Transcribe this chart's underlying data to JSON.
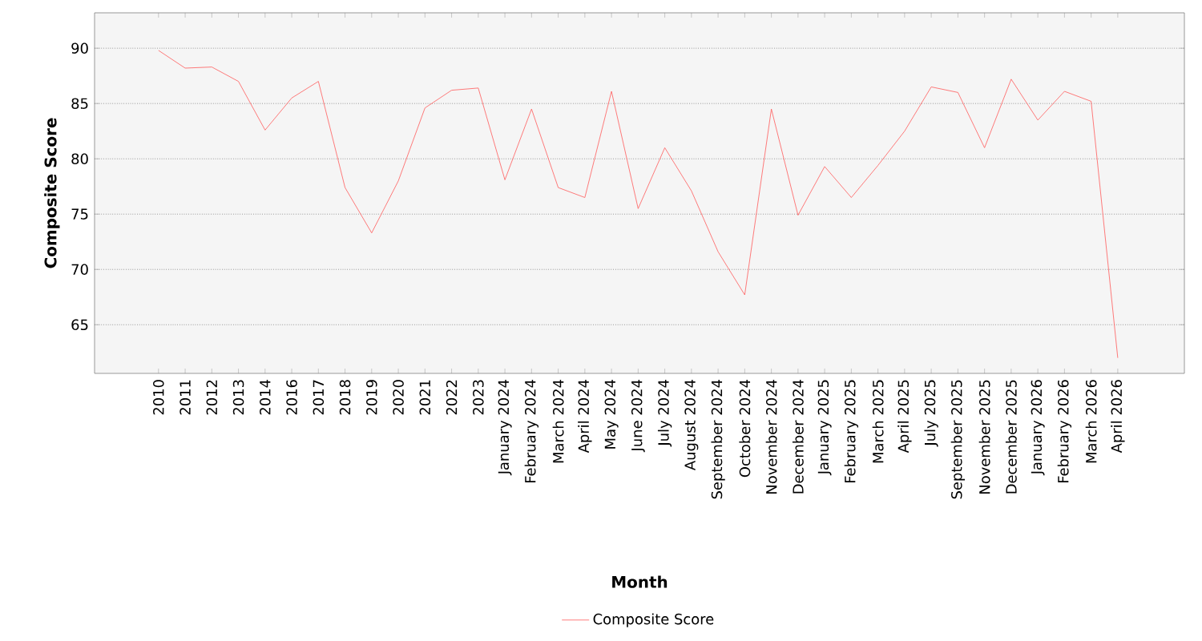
{
  "chart_data": {
    "type": "line",
    "xlabel": "Month",
    "ylabel": "Composite Score",
    "categories": [
      "2010",
      "2011",
      "2012",
      "2013",
      "2014",
      "2016",
      "2017",
      "2018",
      "2019",
      "2020",
      "2021",
      "2022",
      "2023",
      "January 2024",
      "February 2024",
      "March 2024",
      "April 2024",
      "May 2024",
      "June 2024",
      "July 2024",
      "August 2024",
      "September 2024",
      "October 2024",
      "November 2024",
      "December 2024",
      "January 2025",
      "February 2025",
      "March 2025",
      "April 2025",
      "July 2025",
      "September 2025",
      "November 2025",
      "December 2025",
      "January 2026",
      "February 2026",
      "March 2026",
      "April 2026"
    ],
    "series": [
      {
        "name": "Composite Score",
        "color": "#ff5a5a",
        "values": [
          89.8,
          88.2,
          88.3,
          87.0,
          82.6,
          85.5,
          87.0,
          77.4,
          73.3,
          78.0,
          84.6,
          86.2,
          86.4,
          78.1,
          84.5,
          77.4,
          76.5,
          86.1,
          75.5,
          81.0,
          77.1,
          71.6,
          67.7,
          84.5,
          74.9,
          79.3,
          76.5,
          79.4,
          82.5,
          86.5,
          86.0,
          81.0,
          87.2,
          83.5,
          86.1,
          85.2,
          62.0
        ]
      }
    ],
    "ylim": [
      60.6,
      93.2
    ],
    "yticks": [
      65,
      70,
      75,
      80,
      85,
      90
    ],
    "grid": "y",
    "legend": "bottom",
    "marker": "none",
    "line_style": "solid"
  }
}
